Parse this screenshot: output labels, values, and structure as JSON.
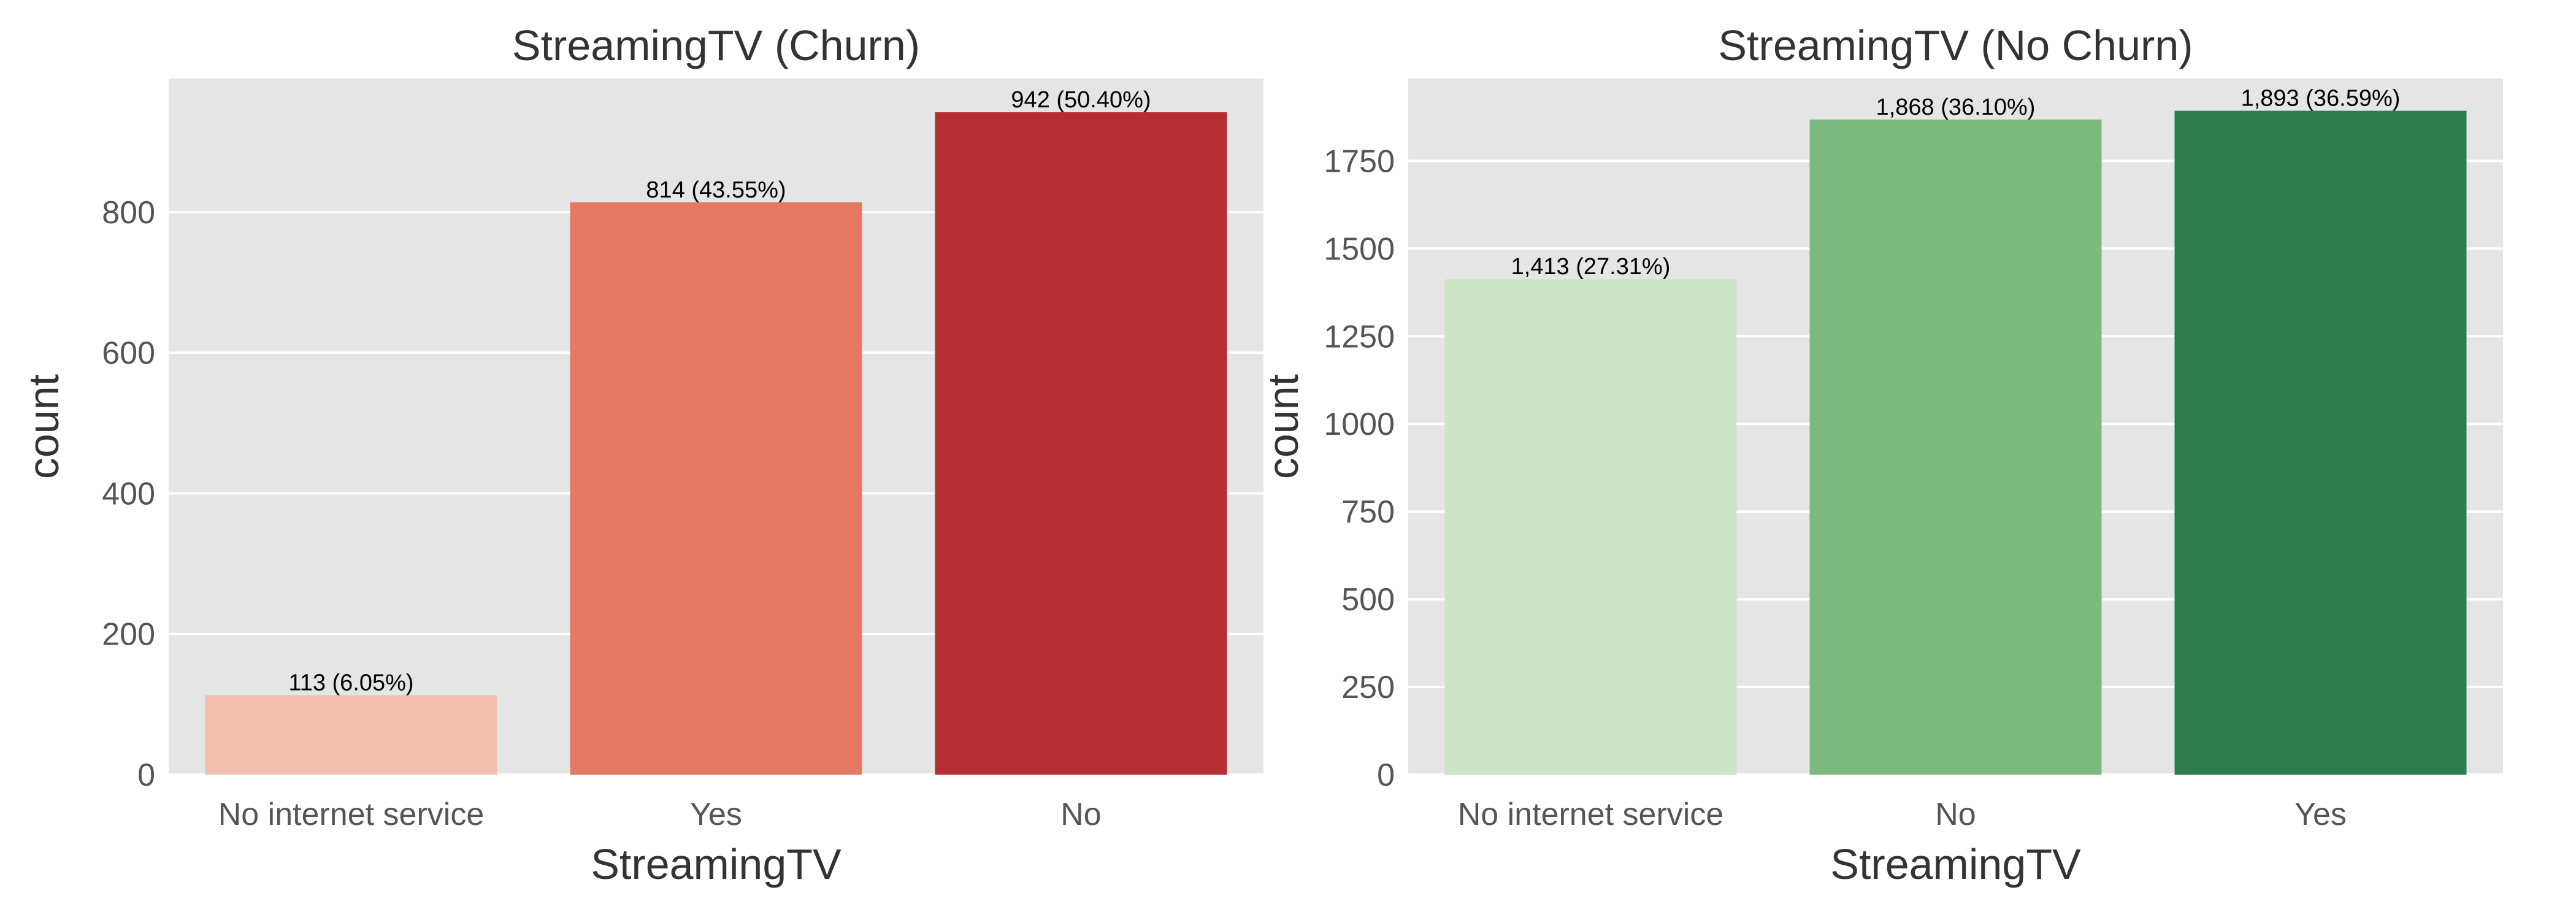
{
  "colors": {
    "panel_background": "#e5e5e5",
    "grid": "#ffffff",
    "text": "#333333",
    "tick_text": "#555555",
    "label_text": "#000000"
  },
  "chart_data": [
    {
      "type": "bar",
      "title": "StreamingTV (Churn)",
      "xlabel": "StreamingTV",
      "ylabel": "count",
      "categories": [
        "No internet service",
        "Yes",
        "No"
      ],
      "values": [
        113,
        814,
        942
      ],
      "data_labels": [
        "113 (6.05%)",
        "814 (43.55%)",
        "942 (50.40%)"
      ],
      "colors": [
        "#f1bfab",
        "#e67963",
        "#b42d33"
      ],
      "ylim": [
        0,
        990
      ],
      "yticks": [
        0,
        200,
        400,
        600,
        800
      ],
      "ytick_labels": [
        "0",
        "200",
        "400",
        "600",
        "800"
      ],
      "grid": true,
      "legend": "none"
    },
    {
      "type": "bar",
      "title": "StreamingTV (No Churn)",
      "xlabel": "StreamingTV",
      "ylabel": "count",
      "categories": [
        "No internet service",
        "No",
        "Yes"
      ],
      "values": [
        1413,
        1868,
        1893
      ],
      "data_labels": [
        "1,413 (27.31%)",
        "1,868 (36.10%)",
        "1,893 (36.59%)"
      ],
      "colors": [
        "#cce5c6",
        "#7db97e",
        "#2e7d4b"
      ],
      "ylim": [
        0,
        1985
      ],
      "yticks": [
        0,
        250,
        500,
        750,
        1000,
        1250,
        1500,
        1750
      ],
      "ytick_labels": [
        "0",
        "250",
        "500",
        "750",
        "1000",
        "1250",
        "1500",
        "1750"
      ],
      "grid": true,
      "legend": "none"
    }
  ]
}
